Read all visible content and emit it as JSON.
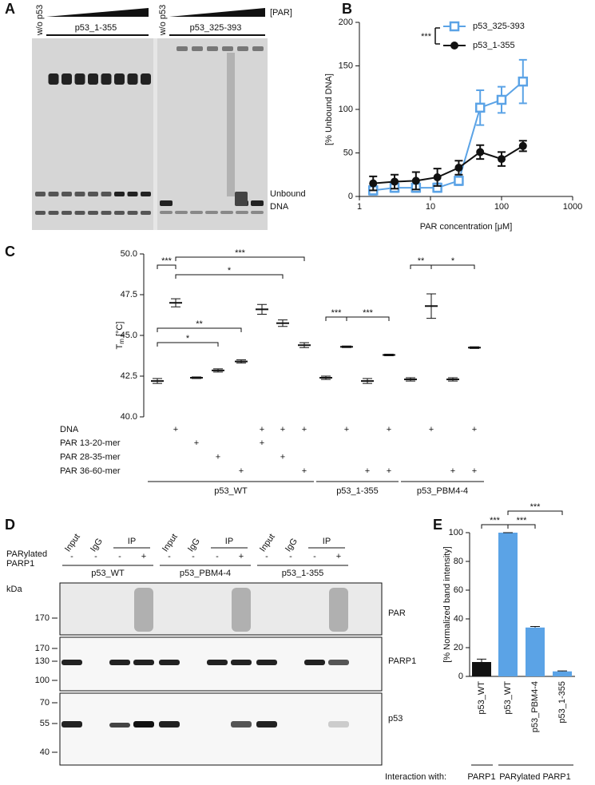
{
  "panel_labels": [
    "A",
    "B",
    "C",
    "D",
    "E"
  ],
  "gel": {
    "control_labels": [
      "w/o p53",
      "w/o p53"
    ],
    "gradient_label": "[PAR]",
    "groups": [
      "p53_1-355",
      "p53_325-393"
    ],
    "band_label": [
      "Unbound",
      "DNA"
    ]
  },
  "blot": {
    "columns": [
      "Input",
      "IgG",
      "IP"
    ],
    "parp_label": [
      "PARylated",
      "PARP1"
    ],
    "signs": [
      "-",
      "-",
      "-",
      "+"
    ],
    "groups": [
      "p53_WT",
      "p53_PBM4-4",
      "p53_1-355"
    ],
    "unit": "kDa",
    "blots": [
      {
        "label": "PAR",
        "markers": [
          170
        ]
      },
      {
        "label": "PARP1",
        "markers": [
          170,
          130,
          100
        ]
      },
      {
        "label": "p53",
        "markers": [
          70,
          55,
          40
        ]
      }
    ]
  },
  "chart_data": [
    {
      "type": "line",
      "xlabel": "PAR concentration [μM]",
      "ylabel": "[% Unbound DNA]",
      "xscale": "log",
      "x": [
        1.5625,
        3.125,
        6.25,
        12.5,
        25,
        50,
        100,
        200
      ],
      "xlim": [
        1,
        1000
      ],
      "xticks": [
        1,
        10,
        100,
        1000
      ],
      "ylim": [
        0,
        200
      ],
      "yticks": [
        0,
        50,
        100,
        150,
        200
      ],
      "annotation": "***",
      "series": [
        {
          "name": "p53_325-393",
          "color": "#5ba3e6",
          "marker": "square",
          "values": [
            7,
            10,
            10,
            10,
            18,
            102,
            111,
            132
          ],
          "errors": [
            5,
            5,
            5,
            5,
            5,
            20,
            15,
            25
          ]
        },
        {
          "name": "p53_1-355",
          "color": "#111111",
          "marker": "circle",
          "values": [
            15,
            17,
            18,
            22,
            33,
            51,
            43,
            58
          ],
          "errors": [
            8,
            8,
            10,
            10,
            8,
            8,
            8,
            6
          ]
        }
      ]
    },
    {
      "type": "errorbar",
      "ylabel": [
        "T",
        "m",
        "[°C]"
      ],
      "ylim": [
        40,
        50
      ],
      "yticks": [
        {
          "value": 40,
          "label": "40.0"
        },
        42.5,
        {
          "value": 45,
          "label": "45.0"
        },
        47.5,
        {
          "value": 50,
          "label": "50.0"
        }
      ],
      "values": [
        42.2,
        47.0,
        42.4,
        42.85,
        43.4,
        46.6,
        45.75,
        44.4,
        42.4,
        44.3,
        42.2,
        43.8,
        42.3,
        46.8,
        42.3,
        44.25
      ],
      "errors": [
        0.15,
        0.25,
        0.05,
        0.1,
        0.1,
        0.3,
        0.2,
        0.15,
        0.1,
        0.05,
        0.15,
        0.05,
        0.1,
        0.75,
        0.1,
        0.05
      ],
      "conditions": [
        {
          "label": "DNA",
          "marks": [
            null,
            "+",
            null,
            null,
            null,
            "+",
            "+",
            "+",
            null,
            "+",
            null,
            "+",
            null,
            "+",
            null,
            "+"
          ]
        },
        {
          "label": "PAR 13-20-mer",
          "marks": [
            null,
            null,
            "+",
            null,
            null,
            "+",
            null,
            null,
            null,
            null,
            null,
            null,
            null,
            null,
            null,
            null
          ]
        },
        {
          "label": "PAR 28-35-mer",
          "marks": [
            null,
            null,
            null,
            "+",
            null,
            null,
            "+",
            null,
            null,
            null,
            null,
            null,
            null,
            null,
            null,
            null
          ]
        },
        {
          "label": "PAR 36-60-mer",
          "marks": [
            null,
            null,
            null,
            null,
            "+",
            null,
            null,
            "+",
            null,
            null,
            "+",
            "+",
            null,
            null,
            "+",
            "+"
          ]
        }
      ],
      "groups": [
        "p53_WT",
        "p53_1-355",
        "p53_PBM4-4"
      ],
      "annotations": [
        {
          "text": "***",
          "from": 0,
          "to": 1
        },
        {
          "text": "***",
          "from": 1,
          "to": 7
        },
        {
          "text": "*",
          "from": 1,
          "to": 6
        },
        {
          "text": "**",
          "from": 0,
          "to": 4
        },
        {
          "text": "*",
          "from": 0,
          "to": 3
        },
        {
          "text": "***",
          "from": 8,
          "to": 9
        },
        {
          "text": "***",
          "from": 9,
          "to": 11
        },
        {
          "text": "**",
          "from": 12,
          "to": 13
        },
        {
          "text": "*",
          "from": 13,
          "to": 15
        }
      ]
    },
    {
      "type": "bar",
      "ylabel": "[% Normalized band intensity]",
      "categories": [
        "p53_WT",
        "p53_WT",
        "p53_PBM4-4",
        "p53_1-355"
      ],
      "values": [
        10,
        100,
        34,
        3.5
      ],
      "errors": [
        2,
        0,
        0.7,
        0.3
      ],
      "colors": [
        "#111111",
        "#5ba3e6",
        "#5ba3e6",
        "#5ba3e6"
      ],
      "ylim": [
        0,
        100
      ],
      "yticks": [
        0,
        20,
        40,
        60,
        80,
        100
      ],
      "footer": [
        "Interaction with:",
        "PARP1",
        "PARylated PARP1"
      ],
      "annotations": [
        {
          "text": "***",
          "from": 0,
          "to": 1
        },
        {
          "text": "***",
          "from": 1,
          "to": 2
        },
        {
          "text": "***",
          "from": 1,
          "to": 3
        }
      ]
    }
  ]
}
